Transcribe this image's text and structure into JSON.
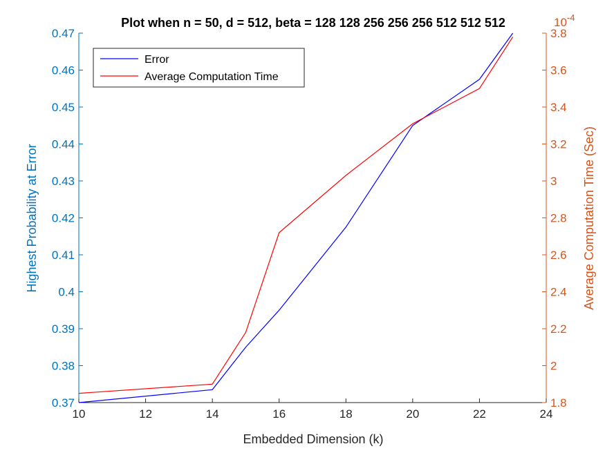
{
  "chart_data": {
    "type": "line",
    "title": "Plot when n = 50, d = 512, beta = 128  128  256  256  256  512  512  512",
    "xlabel": "Embedded Dimension (k)",
    "ylabel_left": "Highest Probability at Error",
    "ylabel_right": "Average Computation Time (Sec)",
    "right_exponent": "10^-4",
    "xlim": [
      10,
      24
    ],
    "ylim_left": [
      0.37,
      0.47
    ],
    "ylim_right": [
      1.8,
      3.8
    ],
    "right_scale": 0.0001,
    "x_ticks": [
      "10",
      "12",
      "14",
      "16",
      "18",
      "20",
      "22",
      "24"
    ],
    "y_left_ticks": [
      "0.37",
      "0.38",
      "0.39",
      "0.4",
      "0.41",
      "0.42",
      "0.43",
      "0.44",
      "0.45",
      "0.46",
      "0.47"
    ],
    "y_right_ticks": [
      "1.8",
      "2",
      "2.2",
      "2.4",
      "2.6",
      "2.8",
      "3",
      "3.2",
      "3.4",
      "3.6",
      "3.8"
    ],
    "grid": false,
    "legend_position": "top-left",
    "series": [
      {
        "name": "Error",
        "axis": "left",
        "color": "#0000FF",
        "x": [
          10,
          14,
          15,
          16,
          18,
          20,
          22,
          23
        ],
        "y": [
          0.37,
          0.3735,
          0.385,
          0.395,
          0.4175,
          0.445,
          0.4575,
          0.47
        ]
      },
      {
        "name": "Average Computation Time",
        "axis": "right",
        "color": "#FF0000",
        "x": [
          10,
          14,
          15,
          16,
          18,
          20,
          22,
          23
        ],
        "y": [
          1.85,
          1.9,
          2.18,
          2.72,
          3.03,
          3.31,
          3.5,
          3.78
        ]
      }
    ]
  }
}
